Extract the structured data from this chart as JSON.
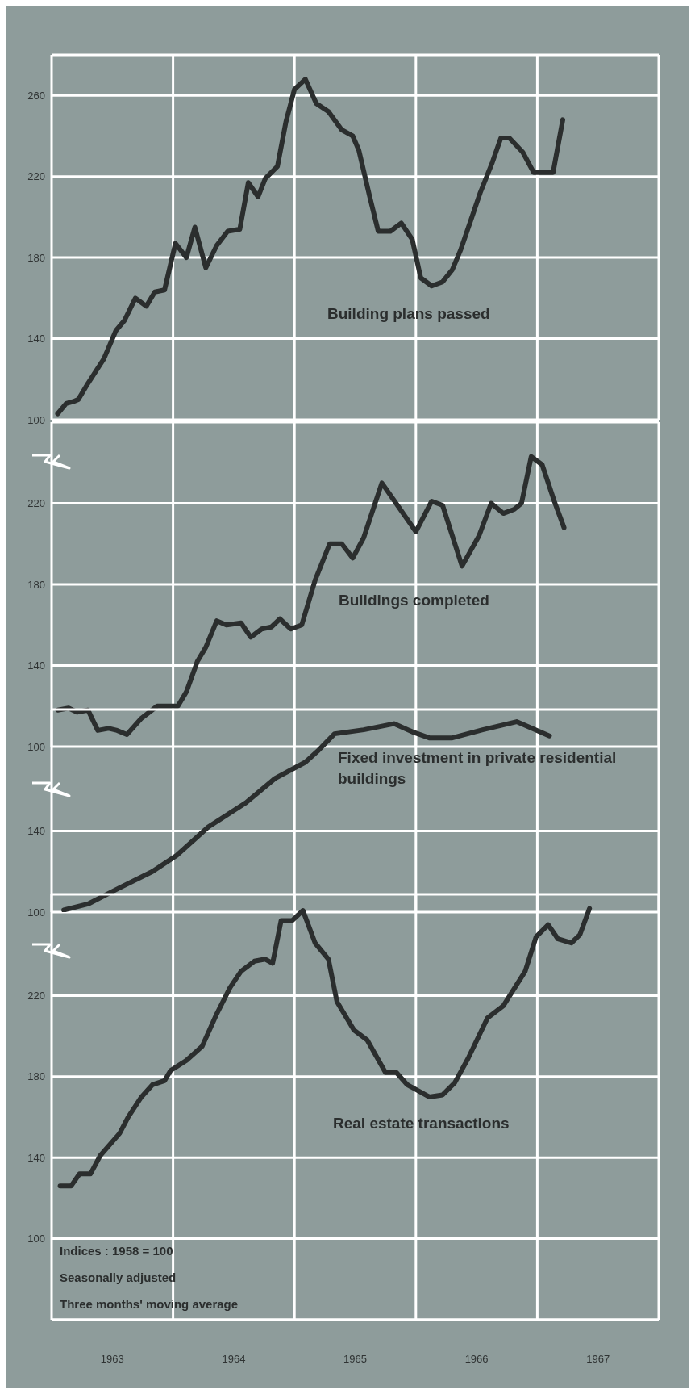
{
  "chart_data": [
    {
      "type": "line",
      "xlim": [
        1963,
        1968
      ],
      "xticks": [
        1963,
        1964,
        1965,
        1966,
        1967,
        1968
      ],
      "ylim": [
        100,
        280
      ],
      "yticks": [
        100,
        140,
        180,
        220,
        260
      ],
      "grid": true,
      "tick_labels": "y",
      "marker": "none",
      "line_style": "solid",
      "x": [
        1963.05,
        1963.12,
        1963.18,
        1963.22,
        1963.3,
        1963.43,
        1963.53,
        1963.6,
        1963.69,
        1963.78,
        1963.85,
        1963.93,
        1964.02,
        1964.11,
        1964.18,
        1964.27,
        1964.36,
        1964.45,
        1964.55,
        1964.62,
        1964.7,
        1964.76,
        1964.86,
        1964.93,
        1965.0,
        1965.09,
        1965.18,
        1965.28,
        1965.39,
        1965.48,
        1965.53,
        1965.62,
        1965.69,
        1965.79,
        1965.88,
        1965.97,
        1966.04,
        1966.13,
        1966.22,
        1966.3,
        1966.37,
        1966.45,
        1966.53,
        1966.63,
        1966.7,
        1966.77,
        1966.88,
        1966.97,
        1967.05,
        1967.13,
        1967.21
      ],
      "series": [
        {
          "name": "Building plans passed",
          "color": "#2b2e2e",
          "values": [
            103,
            108,
            109,
            110,
            118,
            130,
            144,
            149,
            160,
            156,
            163,
            164,
            187,
            180,
            195,
            175,
            186,
            193,
            194,
            217,
            210,
            219,
            225,
            247,
            263,
            268,
            256,
            252,
            243,
            240,
            233,
            210,
            193,
            193,
            197,
            189,
            170,
            166,
            168,
            174,
            184,
            198,
            212,
            227,
            239,
            239,
            232,
            222,
            222,
            222,
            248
          ]
        }
      ]
    },
    {
      "type": "line",
      "xlim": [
        1963,
        1968
      ],
      "xticks": [
        1963,
        1964,
        1965,
        1966,
        1967,
        1968
      ],
      "ylim": [
        100,
        260
      ],
      "yticks": [
        100,
        140,
        180,
        220
      ],
      "grid": true,
      "tick_labels": "y",
      "marker": "none",
      "line_style": "solid",
      "x": [
        1963.05,
        1963.14,
        1963.21,
        1963.3,
        1963.38,
        1963.47,
        1963.54,
        1963.62,
        1963.74,
        1963.87,
        1963.96,
        1964.04,
        1964.11,
        1964.2,
        1964.27,
        1964.36,
        1964.44,
        1964.56,
        1964.64,
        1964.73,
        1964.81,
        1964.88,
        1964.97,
        1965.06,
        1965.17,
        1965.29,
        1965.39,
        1965.48,
        1965.57,
        1965.72,
        1965.86,
        1966.0,
        1966.13,
        1966.22,
        1966.38,
        1966.52,
        1966.62,
        1966.72,
        1966.81,
        1966.87,
        1966.95,
        1967.04,
        1967.14,
        1967.22
      ],
      "series": [
        {
          "name": "Buildings completed",
          "color": "#2b2e2e",
          "values": [
            118,
            119,
            117,
            118,
            108,
            109,
            108,
            106,
            114,
            120,
            120,
            120,
            127,
            142,
            149,
            162,
            160,
            161,
            154,
            158,
            159,
            163,
            158,
            160,
            182,
            200,
            200,
            193,
            203,
            230,
            218,
            206,
            221,
            219,
            189,
            204,
            220,
            215,
            217,
            220,
            243,
            239,
            221,
            208
          ]
        }
      ]
    },
    {
      "type": "line",
      "xlim": [
        1963,
        1968
      ],
      "xticks": [
        1963,
        1964,
        1965,
        1966,
        1967,
        1968
      ],
      "ylim": [
        100,
        200
      ],
      "yticks": [
        100,
        140
      ],
      "grid": true,
      "tick_labels": "y",
      "marker": "none",
      "line_style": "solid",
      "x": [
        1963.1,
        1963.3,
        1963.56,
        1963.83,
        1964.03,
        1964.29,
        1964.6,
        1964.84,
        1965.09,
        1965.2,
        1965.33,
        1965.57,
        1965.82,
        1965.97,
        1966.11,
        1966.3,
        1966.55,
        1966.83,
        1967.1
      ],
      "series": [
        {
          "name": "Fixed investment in private residential buildings",
          "color": "#2b2e2e",
          "values": [
            101,
            104,
            112,
            120,
            128,
            142,
            154,
            166,
            174,
            180,
            188,
            190,
            193,
            189,
            186,
            186,
            190,
            194,
            187
          ]
        }
      ]
    },
    {
      "type": "line",
      "xlim": [
        1963,
        1968
      ],
      "xticks": [
        {
          "value": 1963,
          "label": null
        },
        {
          "value": 1963.5,
          "label": "1963"
        },
        {
          "value": 1964,
          "label": null
        },
        {
          "value": 1964.5,
          "label": "1964"
        },
        {
          "value": 1965,
          "label": null
        },
        {
          "value": 1965.5,
          "label": "1965"
        },
        {
          "value": 1966,
          "label": null
        },
        {
          "value": 1966.5,
          "label": "1966"
        },
        {
          "value": 1967,
          "label": null
        },
        {
          "value": 1967.5,
          "label": "1967"
        },
        {
          "value": 1968,
          "label": null
        }
      ],
      "ylim": [
        60,
        270
      ],
      "yticks": [
        100,
        140,
        180,
        220
      ],
      "grid": true,
      "marker": "none",
      "line_style": "solid",
      "annotations": [
        "Indices : 1958 = 100",
        "Seasonally adjusted",
        "Three months' moving average"
      ],
      "x": [
        1963.07,
        1963.16,
        1963.23,
        1963.32,
        1963.4,
        1963.56,
        1963.63,
        1963.74,
        1963.83,
        1963.93,
        1963.98,
        1964.11,
        1964.24,
        1964.36,
        1964.47,
        1964.56,
        1964.67,
        1964.76,
        1964.82,
        1964.89,
        1964.98,
        1965.07,
        1965.17,
        1965.28,
        1965.35,
        1965.49,
        1965.6,
        1965.75,
        1965.84,
        1965.93,
        1966.11,
        1966.22,
        1966.32,
        1966.43,
        1966.59,
        1966.72,
        1966.9,
        1966.99,
        1967.09,
        1967.17,
        1967.28,
        1967.35,
        1967.43
      ],
      "series": [
        {
          "name": "Real estate transactions",
          "color": "#2b2e2e",
          "values": [
            126,
            126,
            132,
            132,
            141,
            152,
            160,
            170,
            176,
            178,
            183,
            188,
            195,
            211,
            224,
            232,
            237,
            238,
            236,
            257,
            257,
            262,
            246,
            238,
            217,
            203,
            198,
            182,
            182,
            176,
            170,
            171,
            177,
            189,
            209,
            215,
            232,
            249,
            255,
            248,
            246,
            250,
            263
          ]
        }
      ]
    }
  ]
}
